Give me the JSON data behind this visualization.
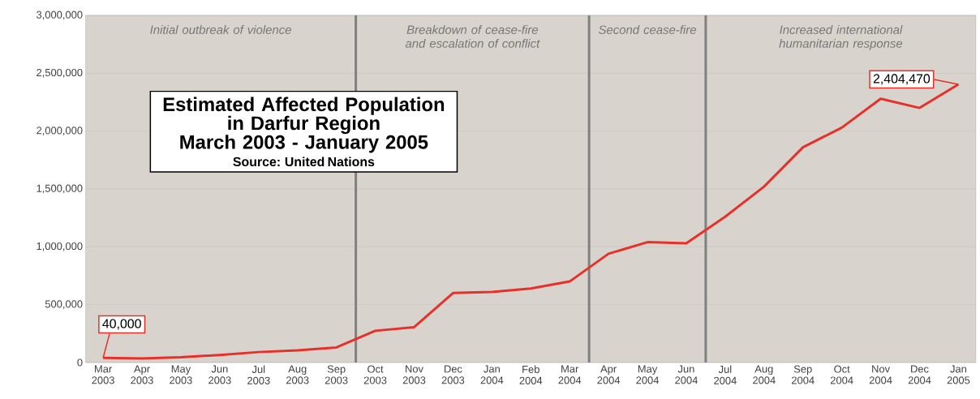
{
  "chart_data": {
    "type": "line",
    "title": "Estimated Affected Population in Darfur Region",
    "subtitle": "March 2003 - January 2005",
    "annotations": [
      "Initial outbreak of violence",
      "Breakdown of cease-fire and escalation of conflict",
      "Second cease-fire",
      "Increased international humanitarian response",
      "Source: United Nations"
    ],
    "categories": [
      "Mar 2003",
      "Apr 2003",
      "May 2003",
      "Jun 2003",
      "Jul 2003",
      "Aug 2003",
      "Sep 2003",
      "Oct 2003",
      "Nov 2003",
      "Dec 2003",
      "Jan 2004",
      "Feb 2004",
      "Mar 2004",
      "Apr 2004",
      "May 2004",
      "Jun 2004",
      "Jul 2004",
      "Aug 2004",
      "Sep 2004",
      "Oct 2004",
      "Nov 2004",
      "Dec 2004",
      "Jan 2005"
    ],
    "values": [
      40000,
      35000,
      45000,
      65000,
      90000,
      105000,
      130000,
      274000,
      305000,
      600000,
      610000,
      640000,
      700000,
      940000,
      1040000,
      1030000,
      1260000,
      1520000,
      1860000,
      2030000,
      2280000,
      2200000,
      2404470
    ],
    "value_labels": [
      "40,000",
      null,
      null,
      null,
      null,
      null,
      null,
      null,
      null,
      null,
      null,
      null,
      null,
      null,
      null,
      null,
      null,
      null,
      null,
      null,
      null,
      null,
      "2,404,470"
    ],
    "color": "#e8302a",
    "ylim": [
      0,
      3000000
    ],
    "yticks": [
      0,
      {
        "value": 500000,
        "label": "500,000"
      },
      {
        "value": 1000000,
        "label": "1,000,000"
      },
      {
        "value": 1500000,
        "label": "1,500,000"
      },
      {
        "value": 2000000,
        "label": "2,000,000"
      },
      {
        "value": 2500000,
        "label": "2,500,000"
      },
      {
        "value": 3000000,
        "label": "3,000,000"
      }
    ],
    "grid": "y"
  }
}
